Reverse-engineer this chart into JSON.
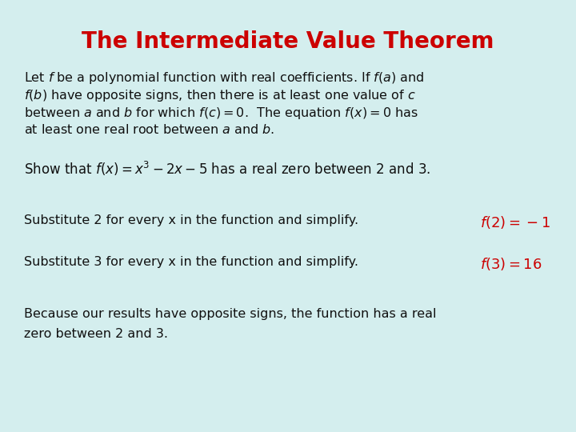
{
  "title": "The Intermediate Value Theorem",
  "title_color": "#cc0000",
  "background_color": "#d4eeee",
  "text_color": "#111111",
  "red_color": "#cc0000",
  "theorem_line1": "Let $f$ be a polynomial function with real coefficients. If $f(a)$ and",
  "theorem_line2": "$f(b)$ have opposite signs, then there is at least one value of $c$",
  "theorem_line3": "between $a$ and $b$ for which $f(c) = 0$.  The equation $f(x) = 0$ has",
  "theorem_line4": "at least one real root between $a$ and $b$.",
  "show_text": "Show that $f(x) = x^3 - 2x - 5$ has a real zero between 2 and 3.",
  "sub2_text": "Substitute 2 for every x in the function and simplify.",
  "sub2_result": "$f(2) = -1$",
  "sub3_text": "Substitute 3 for every x in the function and simplify.",
  "sub3_result": "$f(3) = 16$",
  "because_line1": "Because our results have opposite signs, the function has a real",
  "because_line2": "zero between 2 and 3.",
  "title_fontsize": 20,
  "body_fontsize": 11.5,
  "result_fontsize": 13,
  "show_fontsize": 12,
  "figwidth": 7.2,
  "figheight": 5.4,
  "dpi": 100
}
